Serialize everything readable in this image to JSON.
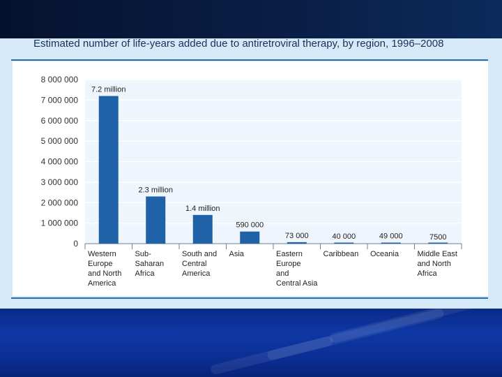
{
  "slide": {
    "title": "Estimated number of life-years added due to antiretroviral therapy, by region, 1996–2008"
  },
  "colors": {
    "bar": "#1f62a8",
    "plot_bg": "#eef5fc",
    "top_band": "#07173a",
    "bottom_band": "#0b2f95"
  },
  "chart_data": {
    "type": "bar",
    "title": "Estimated number of life-years added due to antiretroviral therapy, by region, 1996–2008",
    "xlabel": "",
    "ylabel": "",
    "ylim": [
      0,
      8000000
    ],
    "yticks": [
      "8 000 000",
      "7 000 000",
      "6 000 000",
      "5 000 000",
      "4 000 000",
      "3 000 000",
      "2 000 000",
      "1 000 000",
      "0"
    ],
    "ytick_values": [
      8000000,
      7000000,
      6000000,
      5000000,
      4000000,
      3000000,
      2000000,
      1000000,
      0
    ],
    "grid": true,
    "categories": [
      [
        "Western",
        "Europe",
        "and North",
        "America"
      ],
      [
        "Sub-",
        "Saharan",
        "Africa"
      ],
      [
        "South and",
        "Central",
        "America"
      ],
      [
        "Asia"
      ],
      [
        "Eastern",
        "Europe",
        "and",
        "Central Asia"
      ],
      [
        "Caribbean"
      ],
      [
        "Oceania"
      ],
      [
        "Middle East",
        "and North",
        "Africa"
      ]
    ],
    "values": [
      7200000,
      2300000,
      1400000,
      590000,
      73000,
      40000,
      49000,
      7500
    ],
    "data_labels": [
      "7.2 million",
      "2.3 million",
      "1.4 million",
      "590 000",
      "73 000",
      "40 000",
      "49 000",
      "7500"
    ]
  }
}
